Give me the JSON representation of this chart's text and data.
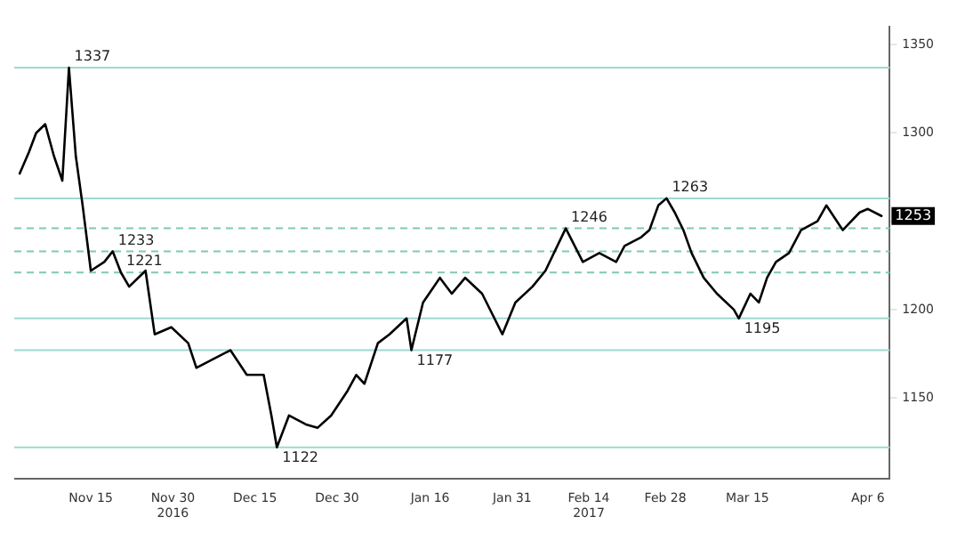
{
  "chart_data": {
    "type": "line",
    "x": [
      "2016-11-02",
      "2016-11-03T16:00",
      "2016-11-05",
      "2016-11-06T16:00",
      "2016-11-08T06:00",
      "2016-11-09T19:00",
      "2016-11-11",
      "2016-11-12T06:00",
      "2016-11-13T12:00",
      "2016-11-15",
      "2016-11-17T11:00",
      "2016-11-19",
      "2016-11-20T12:00",
      "2016-11-22",
      "2016-11-25",
      "2016-11-26T16:00",
      "2016-11-29T17:00",
      "2016-12-02T19:00",
      "2016-12-04T07:00",
      "2016-12-07T10:00",
      "2016-12-10T12:00",
      "2016-12-13T12:00",
      "2016-12-16T14:00",
      "2016-12-18",
      "2016-12-19",
      "2016-12-21T05:00",
      "2016-12-24T07:00",
      "2016-12-26T10:00",
      "2016-12-28T22:00",
      "2016-12-31T22:00",
      "2017-01-02T12:00",
      "2017-01-04",
      "2017-01-06T11:00",
      "2017-01-08T14:00",
      "2017-01-11T17:00",
      "2017-01-12T14:00",
      "2017-01-14T17:00",
      "2017-01-17T19:00",
      "2017-01-19T23:00",
      "2017-01-22T10:00",
      "2017-01-25T12:00",
      "2017-01-29T05:00",
      "2017-01-31T14:00",
      "2017-02-03T17:00",
      "2017-02-06T02:00",
      "2017-02-09T19:00",
      "2017-02-12T22:00",
      "2017-02-15T22:00",
      "2017-02-19",
      "2017-02-20T13:00",
      "2017-02-23T14:00",
      "2017-02-25T02:00",
      "2017-02-26T17:00",
      "2017-02-28T05:00",
      "2017-03-01T17:00",
      "2017-03-03T07:00",
      "2017-03-04T19:00",
      "2017-03-07",
      "2017-03-09T10:00",
      "2017-03-12T12:00",
      "2017-03-13T10:00",
      "2017-03-15T13:00",
      "2017-03-17T02:00",
      "2017-03-18T14:00",
      "2017-03-20T05:00",
      "2017-03-22T14:00",
      "2017-03-24T19:00",
      "2017-03-27T19:00",
      "2017-03-29T10:00",
      "2017-04-01T10:00",
      "2017-04-04T12:00",
      "2017-04-06",
      "2017-04-08T12:00"
    ],
    "series": [
      {
        "color": "#000000",
        "values": [
          1277,
          1289,
          1300,
          1305,
          1287,
          1273,
          1337,
          1287,
          1259,
          1222,
          1227,
          1233,
          1221,
          1213,
          1222,
          1186,
          1190,
          1181,
          1167,
          1172,
          1177,
          1163,
          1163,
          1140,
          1122,
          1140,
          1135,
          1133,
          1140,
          1154,
          1163,
          1158,
          1181,
          1186,
          1195,
          1177,
          1204,
          1218,
          1209,
          1218,
          1209,
          1186,
          1204,
          1213,
          1222,
          1246,
          1227,
          1232,
          1227,
          1236,
          1241,
          1245,
          1259,
          1263,
          1255,
          1245,
          1232,
          1218,
          1209,
          1200,
          1195,
          1209,
          1204,
          1218,
          1227,
          1232,
          1245,
          1250,
          1259,
          1245,
          1255,
          1257,
          1253
        ]
      }
    ],
    "xlim": [
      "2016-11-01",
      "2017-04-10"
    ],
    "xticks": [
      {
        "value": "2016-11-15",
        "label": "Nov 15"
      },
      {
        "value": "2016-11-30",
        "label": "Nov 30\n2016"
      },
      {
        "value": "2016-12-15",
        "label": "Dec 15"
      },
      {
        "value": "2016-12-30",
        "label": "Dec 30"
      },
      {
        "value": "2017-01-16",
        "label": "Jan 16"
      },
      {
        "value": "2017-01-31",
        "label": "Jan 31"
      },
      {
        "value": "2017-02-14",
        "label": "Feb 14\n2017"
      },
      {
        "value": "2017-02-28",
        "label": "Feb 28"
      },
      {
        "value": "2017-03-15",
        "label": "Mar 15"
      },
      {
        "value": "2017-04-06",
        "label": "Apr 6"
      }
    ],
    "ylim": [
      1104,
      1360
    ],
    "yticks": [
      1150,
      1200,
      1250,
      1300,
      1350
    ],
    "ref_lines": [
      {
        "axis": "y",
        "value": 1337,
        "label": "1337",
        "color": "#9ed9cf",
        "line_style": "solid"
      },
      {
        "axis": "y",
        "value": 1263,
        "label": "1263",
        "color": "#9ed9cf",
        "line_style": "solid"
      },
      {
        "axis": "y",
        "value": 1246,
        "label": "1246",
        "color": "#7fc8b8",
        "line_style": "dashed"
      },
      {
        "axis": "y",
        "value": 1233,
        "label": "1233",
        "color": "#7fc8b8",
        "line_style": "dashed"
      },
      {
        "axis": "y",
        "value": 1221,
        "label": "1221",
        "color": "#7fc8b8",
        "line_style": "dashed"
      },
      {
        "axis": "y",
        "value": 1195,
        "label": "1195",
        "color": "#9ed9cf",
        "line_style": "solid"
      },
      {
        "axis": "y",
        "value": 1177,
        "label": "1177",
        "color": "#9ed9cf",
        "line_style": "solid"
      },
      {
        "axis": "y",
        "value": 1122,
        "label": "1122",
        "color": "#9ed9cf",
        "line_style": "solid"
      }
    ],
    "annotations": [
      {
        "text": "1253",
        "x": "2017-04-08T12:00",
        "y": 1253
      }
    ],
    "grid": false,
    "legend": false,
    "marker": "none",
    "line_style": "solid"
  }
}
